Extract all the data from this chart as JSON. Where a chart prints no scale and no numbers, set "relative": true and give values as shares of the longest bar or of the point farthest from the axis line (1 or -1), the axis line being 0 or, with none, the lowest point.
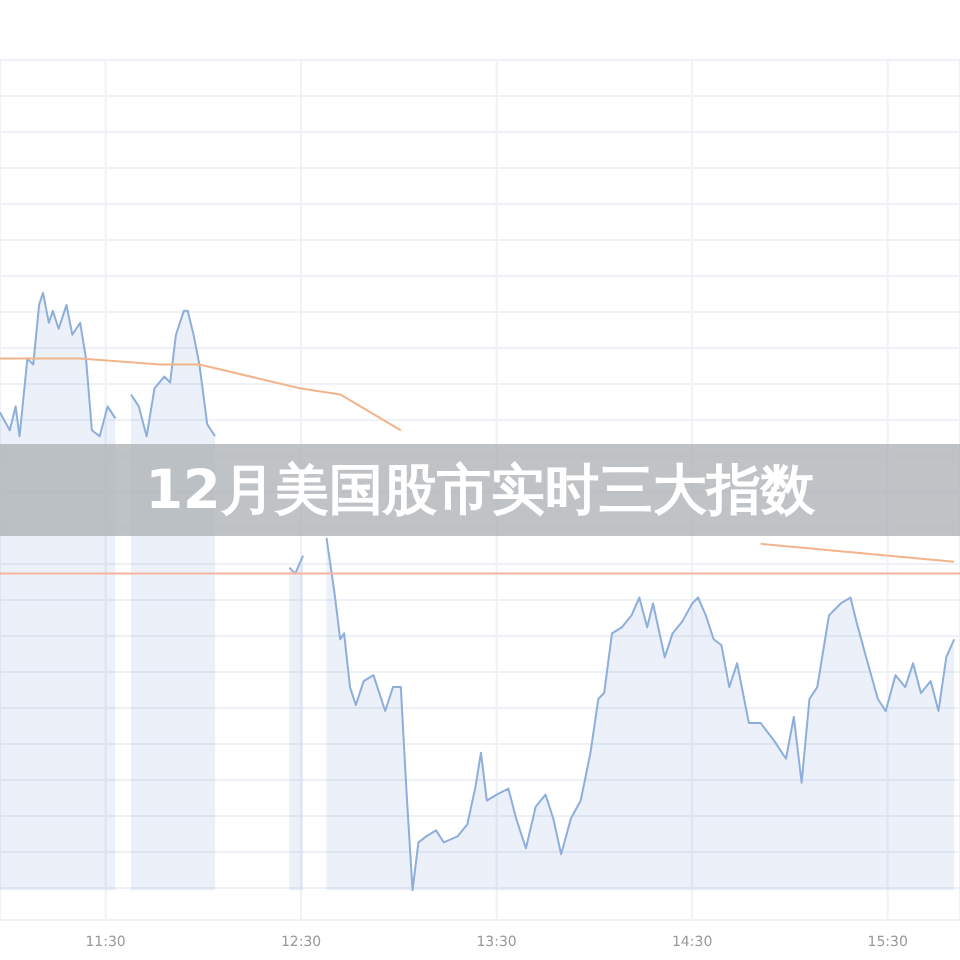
{
  "chart_data": {
    "type": "area",
    "title": "12月美国股市实时三大指数",
    "relative": true,
    "grid": true,
    "legend": false,
    "marker": "none",
    "line_style": "solid",
    "xlim": [
      10.96,
      15.87
    ],
    "xticks": [
      {
        "value": 11.5,
        "label": "11:30"
      },
      {
        "value": 12.5,
        "label": "12:30"
      },
      {
        "value": 13.5,
        "label": "13:30"
      },
      {
        "value": 14.5,
        "label": "14:30"
      },
      {
        "value": 15.5,
        "label": "15:30"
      }
    ],
    "ref_lines": [
      {
        "axis": "y",
        "value": 0.53,
        "label": null,
        "color": "#f7b3a0"
      }
    ],
    "series": [
      {
        "color": "#8eaedb",
        "x": [
          10.96,
          11.01,
          11.04,
          11.06,
          11.1,
          11.13,
          11.16,
          11.18,
          11.21,
          11.23,
          11.26,
          11.3,
          11.33,
          11.37,
          11.4,
          11.43,
          11.47,
          11.51,
          11.55,
          11.59,
          11.63,
          11.67,
          11.71,
          11.75,
          11.8,
          11.83,
          11.86,
          11.9,
          11.92,
          11.95,
          11.98,
          12.02,
          12.06,
          12.11,
          12.19,
          12.26,
          12.32,
          12.39,
          12.44,
          12.47,
          12.51,
          12.55,
          12.6,
          12.63,
          12.67,
          12.7,
          12.72,
          12.75,
          12.78,
          12.82,
          12.87,
          12.93,
          12.97,
          13.01,
          13.04,
          13.07,
          13.1,
          13.14,
          13.19,
          13.23,
          13.3,
          13.35,
          13.39,
          13.42,
          13.45,
          13.5,
          13.56,
          13.6,
          13.65,
          13.7,
          13.75,
          13.79,
          13.83,
          13.88,
          13.93,
          13.98,
          14.02,
          14.05,
          14.09,
          14.14,
          14.19,
          14.23,
          14.27,
          14.3,
          14.36,
          14.4,
          14.45,
          14.5,
          14.53,
          14.57,
          14.61,
          14.65,
          14.69,
          14.73,
          14.79,
          14.85,
          14.92,
          14.98,
          15.02,
          15.06,
          15.1,
          15.14,
          15.2,
          15.26,
          15.31,
          15.34,
          15.39,
          15.45,
          15.49,
          15.54,
          15.59,
          15.63,
          15.67,
          15.72,
          15.76,
          15.8,
          15.84
        ],
        "values": [
          0.8,
          0.77,
          0.81,
          0.76,
          0.89,
          0.88,
          0.98,
          1.0,
          0.95,
          0.97,
          0.94,
          0.98,
          0.93,
          0.95,
          0.89,
          0.77,
          0.76,
          0.81,
          0.79,
          null,
          0.83,
          0.81,
          0.76,
          0.84,
          0.86,
          0.85,
          0.93,
          0.97,
          0.97,
          0.93,
          0.88,
          0.78,
          0.76,
          null,
          null,
          null,
          null,
          null,
          0.54,
          0.53,
          0.56,
          null,
          null,
          0.59,
          0.5,
          0.42,
          0.43,
          0.34,
          0.31,
          0.35,
          0.36,
          0.3,
          0.34,
          0.34,
          0.16,
          0.0,
          0.08,
          0.09,
          0.1,
          0.08,
          0.09,
          0.11,
          0.17,
          0.23,
          0.15,
          0.16,
          0.17,
          0.12,
          0.07,
          0.14,
          0.16,
          0.12,
          0.06,
          0.12,
          0.15,
          0.23,
          0.32,
          0.33,
          0.43,
          0.44,
          0.46,
          0.49,
          0.44,
          0.48,
          0.39,
          0.43,
          0.45,
          0.48,
          0.49,
          0.46,
          0.42,
          0.41,
          0.34,
          0.38,
          0.28,
          0.28,
          0.25,
          0.22,
          0.29,
          0.18,
          0.32,
          0.34,
          0.46,
          0.48,
          0.49,
          0.45,
          0.39,
          0.32,
          0.3,
          0.36,
          0.34,
          0.38,
          0.33,
          0.35,
          0.3,
          0.39,
          0.42
        ]
      },
      {
        "type": "line",
        "color": "#f2b48a",
        "x": [
          10.96,
          11.37,
          11.78,
          11.98,
          12.5,
          12.7,
          13.01,
          13.32,
          13.62,
          14.03,
          14.85,
          15.84
        ],
        "values": [
          0.89,
          0.89,
          0.88,
          0.88,
          0.84,
          0.83,
          0.77,
          null,
          null,
          null,
          0.58,
          0.55
        ]
      }
    ]
  }
}
